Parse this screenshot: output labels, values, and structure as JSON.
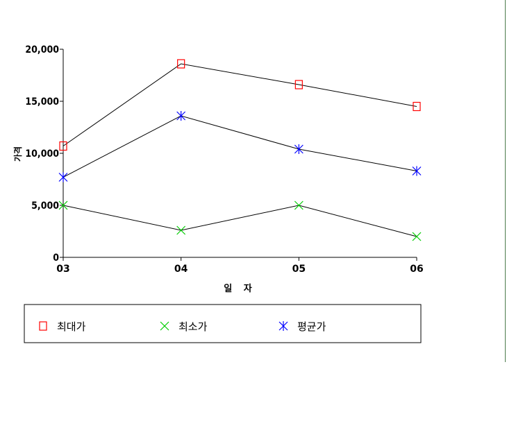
{
  "chart_data": {
    "type": "line",
    "categories": [
      "03",
      "04",
      "05",
      "06"
    ],
    "xlabel": "일 자",
    "ylabel": "가격",
    "ylim": [
      0,
      20000
    ],
    "yticks": [
      {
        "value": 0,
        "label": "0"
      },
      {
        "value": 5000,
        "label": "5,000"
      },
      {
        "value": 10000,
        "label": "10,000"
      },
      {
        "value": 15000,
        "label": "15,000"
      },
      {
        "value": 20000,
        "label": "20,000"
      }
    ],
    "grid": false,
    "legend": "bottom",
    "series": [
      {
        "name": "최대가",
        "values": [
          10700,
          18600,
          16600,
          14500
        ],
        "color": "#ff0000",
        "line_color": "#000000",
        "marker": "square"
      },
      {
        "name": "최소가",
        "values": [
          5000,
          2600,
          5000,
          2000
        ],
        "color": "#00cc00",
        "line_color": "#000000",
        "marker": "x"
      },
      {
        "name": "평균가",
        "values": [
          7700,
          13600,
          10400,
          8300
        ],
        "color": "#0000ff",
        "line_color": "#000000",
        "marker": "asterisk"
      }
    ]
  }
}
